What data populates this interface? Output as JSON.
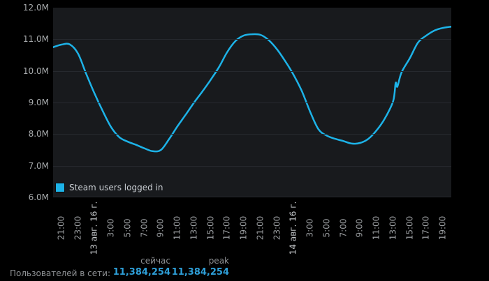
{
  "page": {
    "background": "#000000"
  },
  "chart": {
    "plot_bg": "#181a1d",
    "grid_color": "#26292e",
    "line_color": "#1db3e8",
    "legend": {
      "label": "Steam users logged in",
      "swatch_color": "#1db3e8"
    }
  },
  "chart_data": {
    "type": "line",
    "title": "",
    "xlabel": "",
    "ylabel": "",
    "grid": "horizontal-only",
    "legend_position": "inside-bottom-left",
    "x_unit": "hours offset from 20:00 12 Aug 2016",
    "x_range_hours": [
      0,
      48
    ],
    "ylim_millions": [
      6,
      12
    ],
    "y_ticks": [
      {
        "value_millions": 12,
        "label": "12.0M"
      },
      {
        "value_millions": 11,
        "label": "11.0M"
      },
      {
        "value_millions": 10,
        "label": "10.0M"
      },
      {
        "value_millions": 9,
        "label": "9.0M"
      },
      {
        "value_millions": 8,
        "label": "8.0M"
      },
      {
        "value_millions": 7,
        "label": "7.0M"
      },
      {
        "value_millions": 6,
        "label": "6.0M"
      }
    ],
    "x_ticks": [
      {
        "h": 1,
        "label": "21:00",
        "date": false
      },
      {
        "h": 3,
        "label": "23:00",
        "date": false
      },
      {
        "h": 5,
        "label": "13 авг. 16 г.",
        "date": true
      },
      {
        "h": 7,
        "label": "3:00",
        "date": false
      },
      {
        "h": 9,
        "label": "5:00",
        "date": false
      },
      {
        "h": 11,
        "label": "7:00",
        "date": false
      },
      {
        "h": 13,
        "label": "9:00",
        "date": false
      },
      {
        "h": 15,
        "label": "11:00",
        "date": false
      },
      {
        "h": 17,
        "label": "13:00",
        "date": false
      },
      {
        "h": 19,
        "label": "15:00",
        "date": false
      },
      {
        "h": 21,
        "label": "17:00",
        "date": false
      },
      {
        "h": 23,
        "label": "19:00",
        "date": false
      },
      {
        "h": 25,
        "label": "21:00",
        "date": false
      },
      {
        "h": 27,
        "label": "23:00",
        "date": false
      },
      {
        "h": 29,
        "label": "14 авг. 16 г.",
        "date": true
      },
      {
        "h": 31,
        "label": "3:00",
        "date": false
      },
      {
        "h": 33,
        "label": "5:00",
        "date": false
      },
      {
        "h": 35,
        "label": "7:00",
        "date": false
      },
      {
        "h": 37,
        "label": "9:00",
        "date": false
      },
      {
        "h": 39,
        "label": "11:00",
        "date": false
      },
      {
        "h": 41,
        "label": "13:00",
        "date": false
      },
      {
        "h": 43,
        "label": "15:00",
        "date": false
      },
      {
        "h": 45,
        "label": "17:00",
        "date": false
      },
      {
        "h": 47,
        "label": "19:00",
        "date": false
      }
    ],
    "series": [
      {
        "name": "Steam users logged in",
        "color": "#1db3e8",
        "points_hour_vs_millions": [
          [
            0,
            10.75
          ],
          [
            1,
            10.83
          ],
          [
            2,
            10.84
          ],
          [
            3,
            10.55
          ],
          [
            4,
            9.9
          ],
          [
            5,
            9.28
          ],
          [
            6,
            8.72
          ],
          [
            7,
            8.22
          ],
          [
            8,
            7.9
          ],
          [
            9,
            7.76
          ],
          [
            10,
            7.66
          ],
          [
            11,
            7.55
          ],
          [
            12,
            7.46
          ],
          [
            13,
            7.5
          ],
          [
            14,
            7.85
          ],
          [
            15,
            8.25
          ],
          [
            16,
            8.62
          ],
          [
            17,
            9.0
          ],
          [
            18,
            9.35
          ],
          [
            19,
            9.72
          ],
          [
            20,
            10.12
          ],
          [
            21,
            10.6
          ],
          [
            22,
            10.95
          ],
          [
            23,
            11.12
          ],
          [
            24,
            11.16
          ],
          [
            25,
            11.14
          ],
          [
            26,
            10.97
          ],
          [
            27,
            10.68
          ],
          [
            28,
            10.3
          ],
          [
            29,
            9.87
          ],
          [
            30,
            9.35
          ],
          [
            31,
            8.7
          ],
          [
            32,
            8.15
          ],
          [
            33,
            7.95
          ],
          [
            34,
            7.85
          ],
          [
            35,
            7.78
          ],
          [
            36,
            7.7
          ],
          [
            37,
            7.72
          ],
          [
            38,
            7.85
          ],
          [
            39,
            8.12
          ],
          [
            40,
            8.5
          ],
          [
            41,
            9.05
          ],
          [
            41.3,
            9.62
          ],
          [
            41.5,
            9.5
          ],
          [
            42,
            9.95
          ],
          [
            43,
            10.4
          ],
          [
            44,
            10.9
          ],
          [
            45,
            11.12
          ],
          [
            46,
            11.28
          ],
          [
            47,
            11.36
          ],
          [
            48,
            11.4
          ]
        ]
      }
    ]
  },
  "stats": {
    "now_header": "сейчас",
    "peak_header": "peak",
    "row_label": "Пользователей в сети:",
    "now_value": "11,384,254",
    "peak_value": "11,384,254",
    "value_color": "#2e9fd8"
  }
}
